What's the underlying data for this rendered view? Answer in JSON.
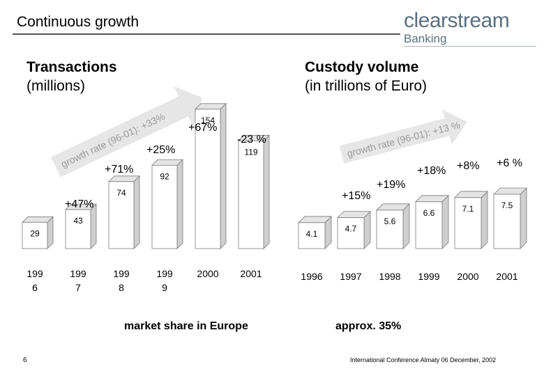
{
  "slide": {
    "title": "Continuous growth",
    "brand_name": "clearstream",
    "brand_sub": "Banking",
    "page_number": "6",
    "footer": "International Conference Almaty 06 December, 2002"
  },
  "colors": {
    "bar_front": "#ffffff",
    "bar_side": "#cfcfcf",
    "bar_top": "#e4e4e4",
    "bar_stroke": "#7a7a7a",
    "arrow": "#e6e6e6",
    "arrow_text": "#9a9a9a",
    "brand": "#5a6f7f"
  },
  "chart_data": [
    {
      "type": "bar",
      "name": "transactions",
      "title_line1": "Transactions",
      "title_line2": "(millions)",
      "categories": [
        "199\n6",
        "199\n7",
        "199\n8",
        "199\n9",
        "2000",
        "2001"
      ],
      "values": [
        29,
        43,
        74,
        92,
        154,
        119
      ],
      "value_labels": [
        "29",
        "43",
        "74",
        "92",
        "154",
        "119"
      ],
      "growth_labels": [
        "+47%",
        "+71%",
        "+25%",
        "+67%",
        "-23 %"
      ],
      "trend_label": "growth rate (96-01): +33%",
      "footnote": "market share in Europe"
    },
    {
      "type": "bar",
      "name": "custody",
      "title_line1": "Custody volume",
      "title_line2": "(in trillions of Euro)",
      "categories": [
        "1996",
        "1997",
        "1998",
        "1999",
        "2000",
        "2001"
      ],
      "values": [
        4.1,
        4.7,
        5.6,
        6.6,
        7.1,
        7.5
      ],
      "value_labels": [
        "4.1",
        "4.7",
        "5.6",
        "6.6",
        "7.1",
        "7.5"
      ],
      "growth_labels": [
        "+15%",
        "+19%",
        "+18%",
        "+8%",
        "+6 %"
      ],
      "trend_label": "growth rate (96-01): +13 %",
      "footnote": "approx. 35%"
    }
  ]
}
